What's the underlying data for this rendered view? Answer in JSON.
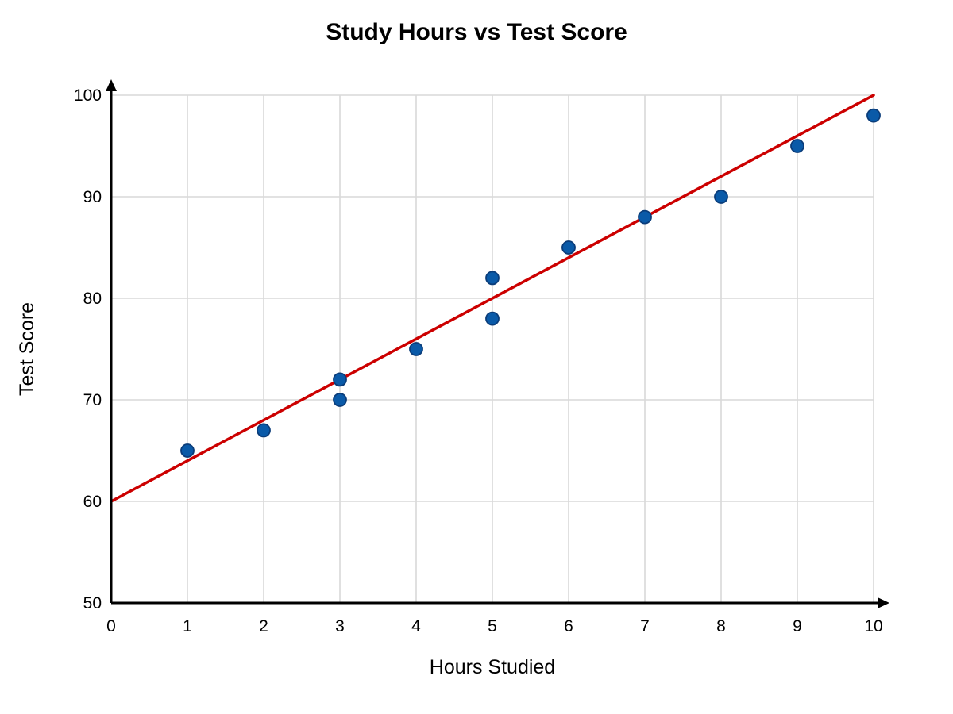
{
  "chart_data": {
    "type": "scatter",
    "title": "Study Hours vs Test Score",
    "xlabel": "Hours Studied",
    "ylabel": "Test Score",
    "xlim": [
      0,
      10
    ],
    "ylim": [
      50,
      100
    ],
    "xticks": [
      "0",
      "1",
      "2",
      "3",
      "4",
      "5",
      "6",
      "7",
      "8",
      "9",
      "10"
    ],
    "yticks": [
      "50",
      "60",
      "70",
      "80",
      "90",
      "100"
    ],
    "grid": true,
    "points": [
      {
        "x": 1,
        "y": 65
      },
      {
        "x": 2,
        "y": 67
      },
      {
        "x": 3,
        "y": 70
      },
      {
        "x": 3,
        "y": 72
      },
      {
        "x": 4,
        "y": 75
      },
      {
        "x": 5,
        "y": 78
      },
      {
        "x": 5,
        "y": 82
      },
      {
        "x": 6,
        "y": 85
      },
      {
        "x": 7,
        "y": 88
      },
      {
        "x": 8,
        "y": 90
      },
      {
        "x": 9,
        "y": 95
      },
      {
        "x": 10,
        "y": 98
      }
    ],
    "trend_line": {
      "type": "linear",
      "points": [
        {
          "x": 0,
          "y": 60
        },
        {
          "x": 10,
          "y": 100
        }
      ]
    },
    "colors": {
      "points": "#0a5aa8",
      "trend_line": "#cc0000",
      "grid": "#d9d9d9",
      "axes": "#000000"
    }
  }
}
